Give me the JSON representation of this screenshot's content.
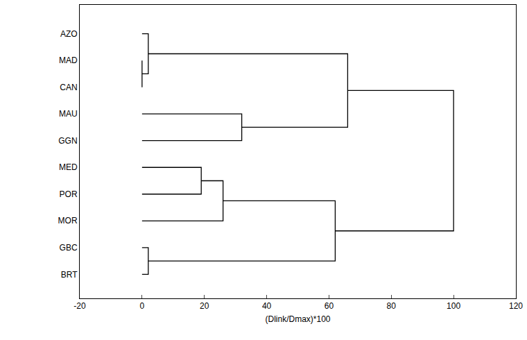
{
  "chart_data": {
    "type": "dendrogram",
    "orientation": "horizontal",
    "leaves": [
      "AZO",
      "MAD",
      "CAN",
      "MAU",
      "GGN",
      "MED",
      "POR",
      "MOR",
      "GBC",
      "BRT"
    ],
    "merges": [
      {
        "children": [
          1,
          2
        ],
        "height": 0
      },
      {
        "children": [
          0,
          10
        ],
        "height": 2
      },
      {
        "children": [
          3,
          4
        ],
        "height": 32
      },
      {
        "children": [
          11,
          12
        ],
        "height": 66
      },
      {
        "children": [
          5,
          6
        ],
        "height": 19
      },
      {
        "children": [
          14,
          7
        ],
        "height": 26
      },
      {
        "children": [
          8,
          9
        ],
        "height": 2
      },
      {
        "children": [
          15,
          16
        ],
        "height": 62
      },
      {
        "children": [
          13,
          17
        ],
        "height": 100
      }
    ],
    "x_label": "(Dlink/Dmax)*100",
    "xlim": [
      -20,
      120
    ],
    "xticks": [
      -20,
      0,
      20,
      40,
      60,
      80,
      100,
      120
    ],
    "color": "#000000"
  }
}
